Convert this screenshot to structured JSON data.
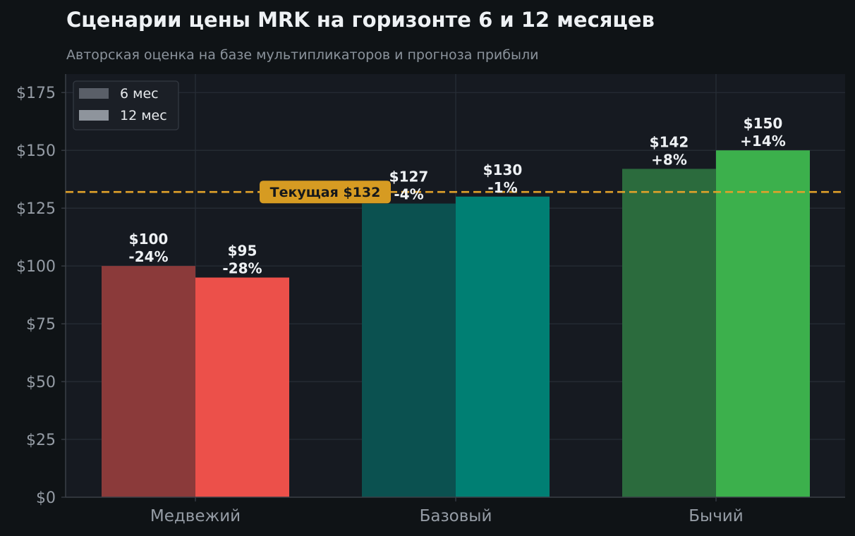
{
  "chart_data": {
    "type": "bar",
    "title": "Сценарии цены MRK на горизонте 6 и 12 месяцев",
    "subtitle": "Авторская оценка на базе мультипликаторов и прогноза прибыли",
    "categories": [
      "Медвежий",
      "Базовый",
      "Бычий"
    ],
    "series": [
      {
        "name": "6 мес",
        "values": [
          100,
          127,
          142
        ],
        "value_labels": [
          "$100",
          "$127",
          "$142"
        ],
        "pct_labels": [
          "-24%",
          "-4%",
          "+8%"
        ],
        "colors": [
          "#8b3a3a",
          "#0b5150",
          "#2b6b3d"
        ]
      },
      {
        "name": "12 мес",
        "values": [
          95,
          130,
          150
        ],
        "value_labels": [
          "$95",
          "$130",
          "$150"
        ],
        "pct_labels": [
          "-28%",
          "-1%",
          "+14%"
        ],
        "colors": [
          "#ec504a",
          "#007f73",
          "#3cb04c"
        ]
      }
    ],
    "y_ticks": [
      0,
      25,
      50,
      75,
      100,
      125,
      150,
      175
    ],
    "y_tick_labels": [
      "$0",
      "$25",
      "$50",
      "$75",
      "$100",
      "$125",
      "$150",
      "$175"
    ],
    "ylim": [
      0,
      183
    ],
    "grid": true,
    "legend": {
      "placement": "top-left",
      "swatch_colors": [
        "#5a5f68",
        "#8e949c"
      ]
    },
    "reference_line": {
      "value": 132,
      "label": "Текущая $132",
      "color": "#e0a12a"
    }
  }
}
